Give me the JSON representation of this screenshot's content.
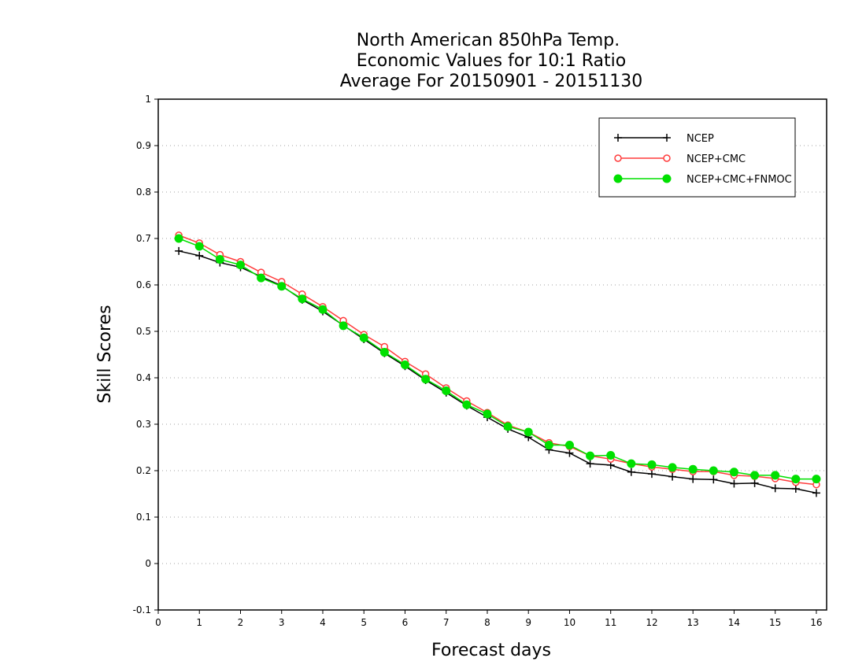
{
  "chart_data": {
    "type": "line",
    "title_lines": [
      "North American 850hPa Temp.",
      "Economic Values for 10:1 Ratio",
      "Average For 20150901 - 20151130"
    ],
    "xlabel": "Forecast days",
    "ylabel": "Skill Scores",
    "xlim": [
      0,
      16.25
    ],
    "ylim": [
      -0.1,
      1
    ],
    "x_ticks": [
      0,
      1,
      2,
      3,
      4,
      5,
      6,
      7,
      8,
      9,
      10,
      11,
      12,
      13,
      14,
      15,
      16
    ],
    "x_tick_labels": [
      "0",
      "1",
      "2",
      "3",
      "4",
      "5",
      "6",
      "7",
      "8",
      "9",
      "10",
      "11",
      "12",
      "13",
      "14",
      "15",
      "16"
    ],
    "y_ticks": [
      -0.1,
      0,
      0.1,
      0.2,
      0.3,
      0.4,
      0.5,
      0.6,
      0.7,
      0.8,
      0.9,
      1
    ],
    "y_tick_labels": [
      "-0.1",
      "0",
      "0.1",
      "0.2",
      "0.3",
      "0.4",
      "0.5",
      "0.6",
      "0.7",
      "0.8",
      "0.9",
      "1"
    ],
    "grid": "horizontal dotted",
    "legend_position": "top-right",
    "x": [
      0.5,
      1,
      1.5,
      2,
      2.5,
      3,
      3.5,
      4,
      4.5,
      5,
      5.5,
      6,
      6.5,
      7,
      7.5,
      8,
      8.5,
      9,
      9.5,
      10,
      10.5,
      11,
      11.5,
      12,
      12.5,
      13,
      13.5,
      14,
      14.5,
      15,
      15.5,
      16
    ],
    "series": [
      {
        "name": "NCEP",
        "color": "#000000",
        "marker": "plus",
        "values": [
          0.673,
          0.663,
          0.648,
          0.638,
          0.618,
          0.598,
          0.568,
          0.543,
          0.513,
          0.483,
          0.453,
          0.425,
          0.395,
          0.368,
          0.34,
          0.315,
          0.29,
          0.272,
          0.245,
          0.238,
          0.215,
          0.212,
          0.197,
          0.193,
          0.187,
          0.182,
          0.181,
          0.172,
          0.173,
          0.162,
          0.161,
          0.152
        ]
      },
      {
        "name": "NCEP+CMC",
        "color": "#ff3b3b",
        "marker": "open-circle",
        "values": [
          0.707,
          0.69,
          0.665,
          0.65,
          0.627,
          0.607,
          0.58,
          0.553,
          0.523,
          0.493,
          0.467,
          0.435,
          0.408,
          0.378,
          0.35,
          0.325,
          0.298,
          0.283,
          0.26,
          0.252,
          0.232,
          0.225,
          0.215,
          0.208,
          0.203,
          0.198,
          0.198,
          0.19,
          0.188,
          0.183,
          0.175,
          0.17
        ]
      },
      {
        "name": "NCEP+CMC+FNMOC",
        "color": "#00e000",
        "marker": "filled-circle",
        "values": [
          0.7,
          0.683,
          0.655,
          0.643,
          0.615,
          0.597,
          0.57,
          0.547,
          0.512,
          0.486,
          0.455,
          0.428,
          0.397,
          0.372,
          0.342,
          0.322,
          0.295,
          0.283,
          0.255,
          0.255,
          0.232,
          0.233,
          0.215,
          0.213,
          0.207,
          0.203,
          0.2,
          0.197,
          0.19,
          0.19,
          0.182,
          0.182
        ]
      }
    ]
  }
}
